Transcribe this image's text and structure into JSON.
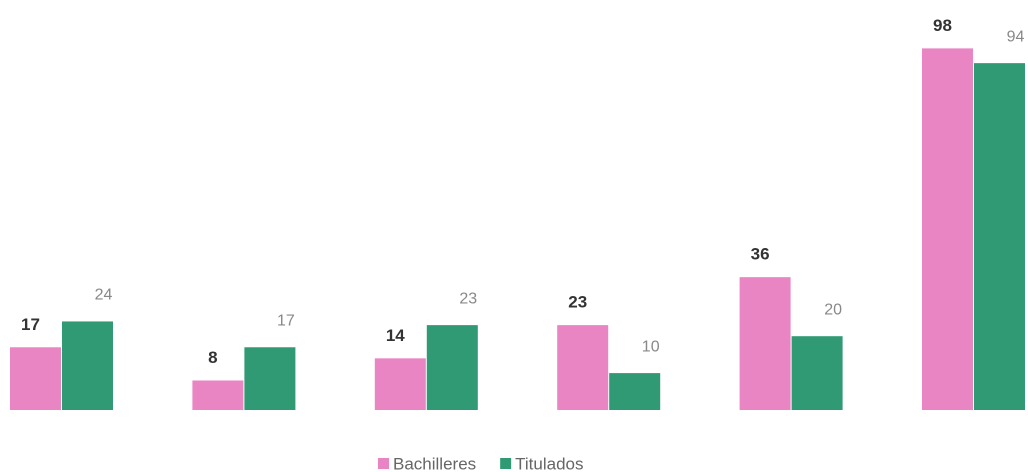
{
  "chart_data": {
    "type": "bar",
    "categories": [
      null,
      null,
      null,
      null,
      null,
      null
    ],
    "series": [
      {
        "name": "Bachilleres",
        "color": "#ea85c4",
        "values": [
          17,
          8,
          14,
          23,
          36,
          98
        ]
      },
      {
        "name": "Titulados",
        "color": "#2f9a73",
        "values": [
          24,
          17,
          23,
          10,
          20,
          94
        ]
      }
    ],
    "legend": "bottom"
  }
}
